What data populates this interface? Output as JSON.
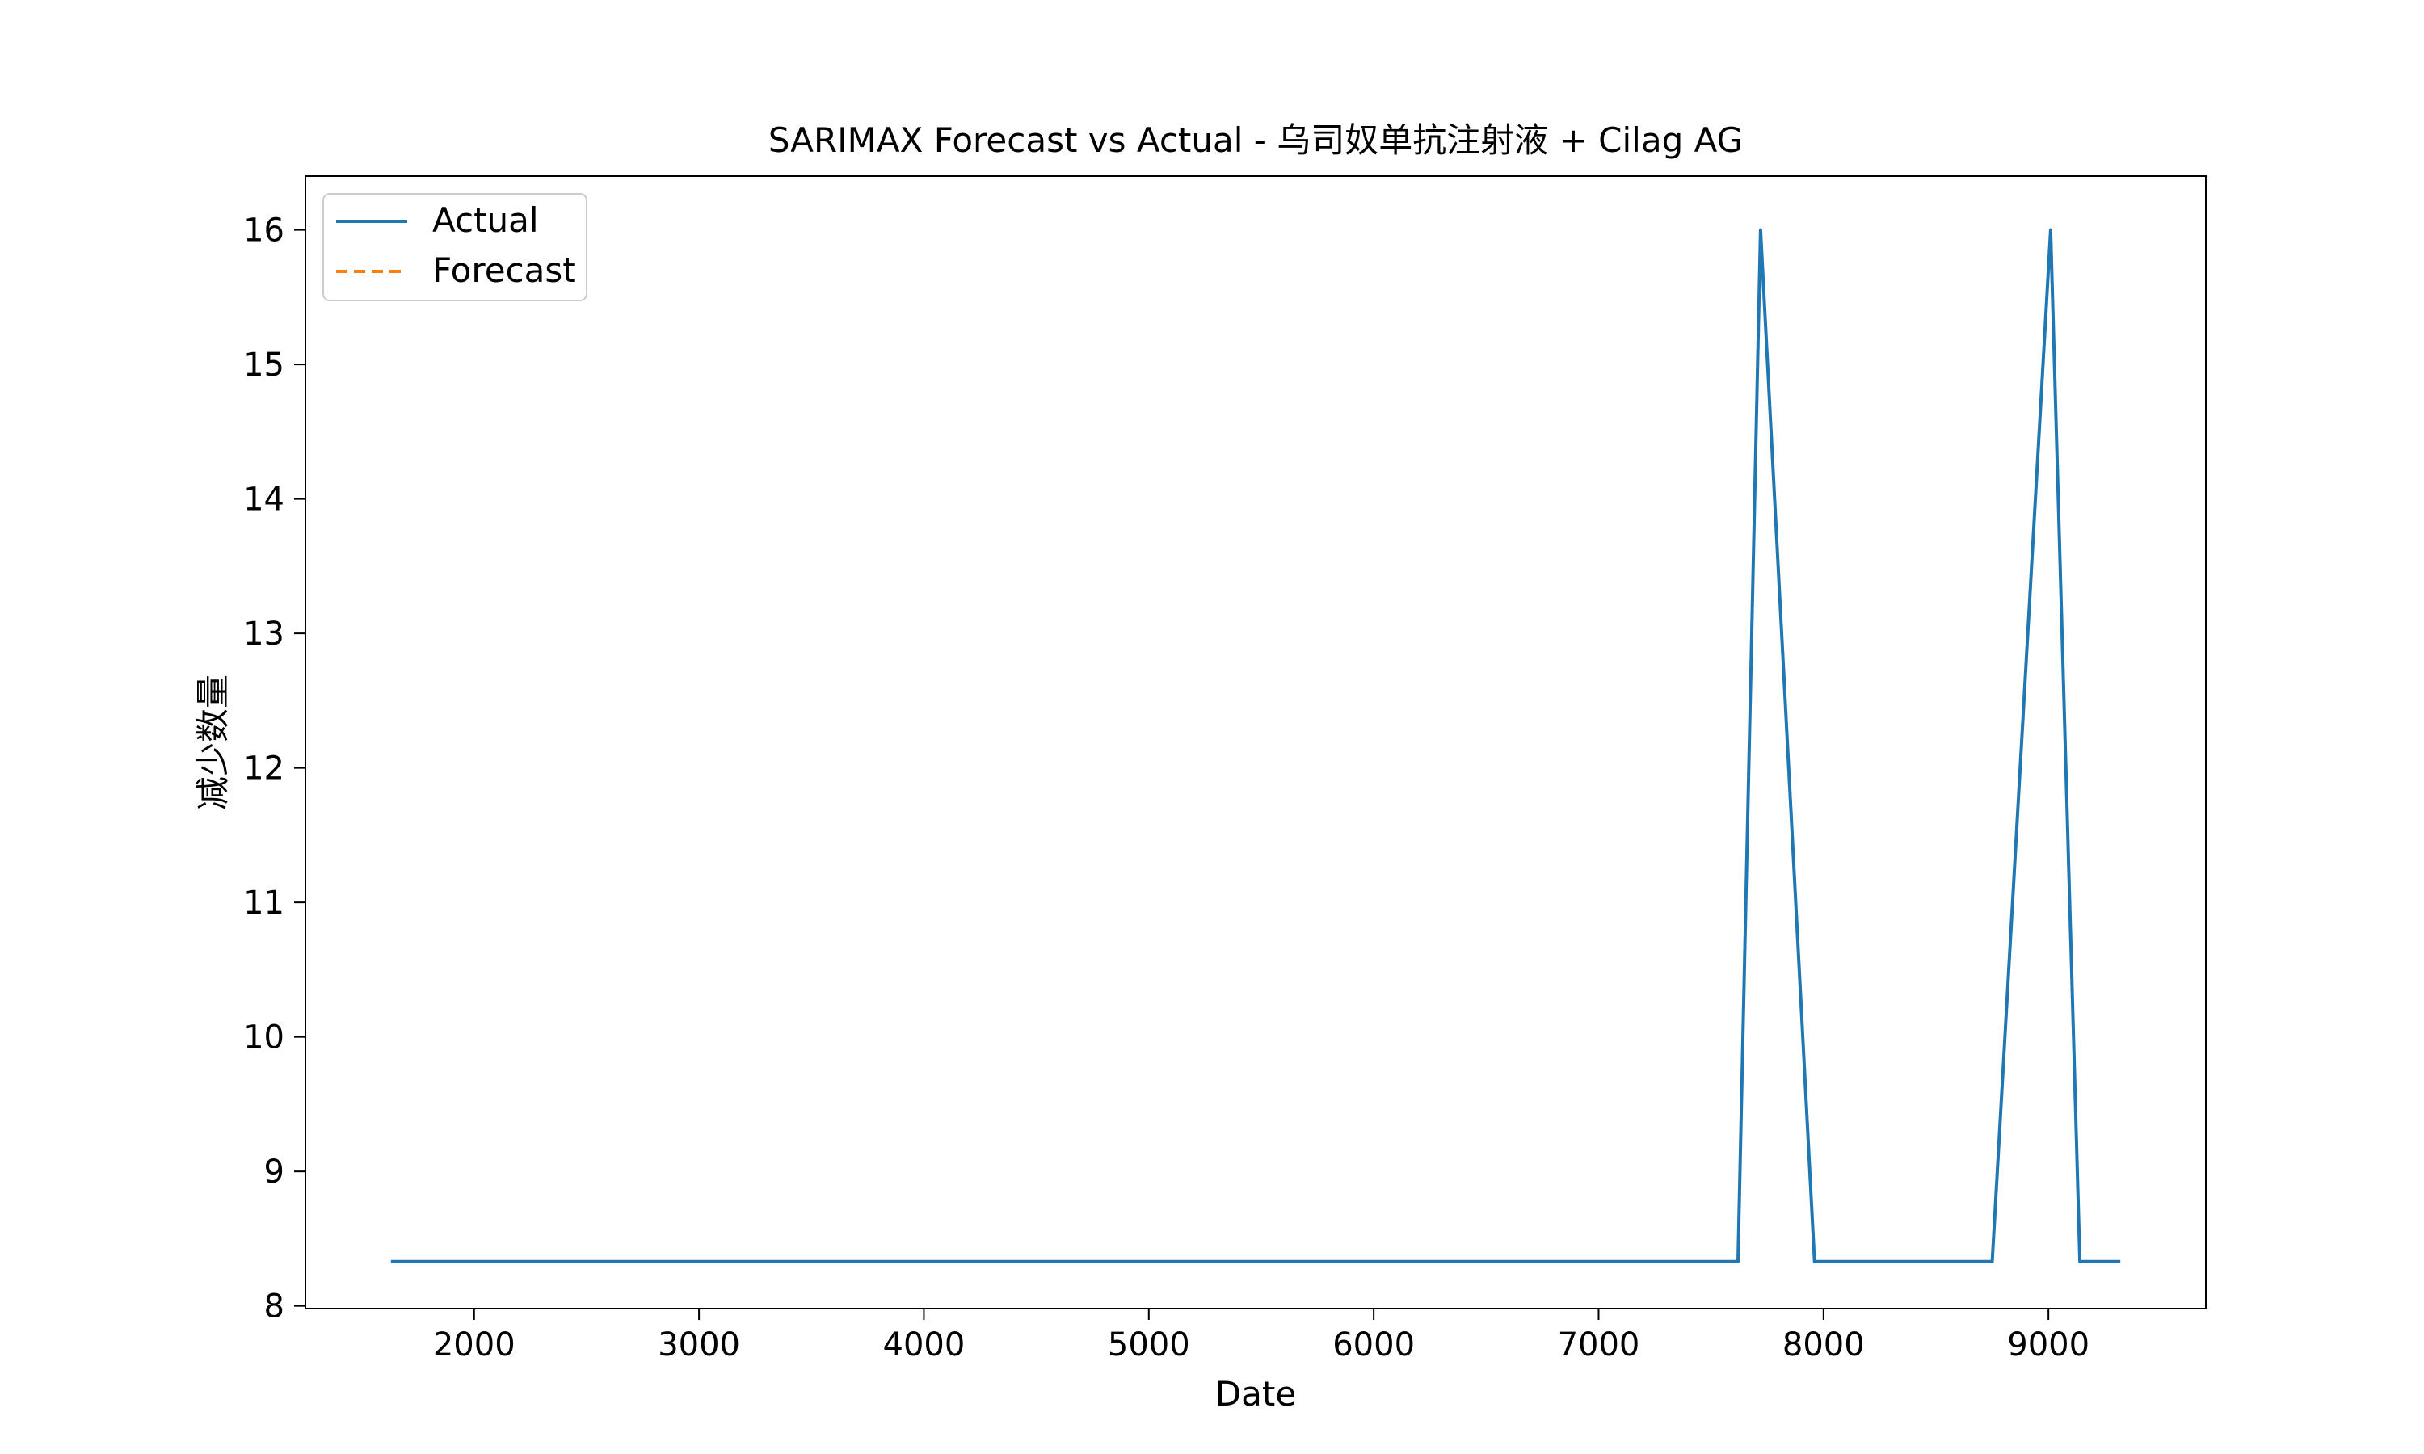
{
  "chart_data": {
    "type": "line",
    "title": "SARIMAX Forecast vs Actual - 乌司奴单抗注射液 + Cilag AG",
    "xlabel": "Date",
    "ylabel": "减少数量",
    "xlim": [
      1250,
      9700
    ],
    "ylim": [
      7.98,
      16.4
    ],
    "xticks": [
      2000,
      3000,
      4000,
      5000,
      6000,
      7000,
      8000,
      9000
    ],
    "yticks": [
      8,
      9,
      10,
      11,
      12,
      13,
      14,
      15,
      16
    ],
    "grid": false,
    "legend_position": "top-left",
    "series": [
      {
        "name": "Actual",
        "color": "#1f77b4",
        "style": "solid",
        "points": [
          [
            1630,
            8.33
          ],
          [
            7620,
            8.33
          ],
          [
            7720,
            16.0
          ],
          [
            7960,
            8.33
          ],
          [
            8750,
            8.33
          ],
          [
            9010,
            16.0
          ],
          [
            9140,
            8.33
          ],
          [
            9320,
            8.33
          ]
        ]
      },
      {
        "name": "Forecast",
        "color": "#ff7f0e",
        "style": "dashed",
        "points": []
      }
    ]
  }
}
